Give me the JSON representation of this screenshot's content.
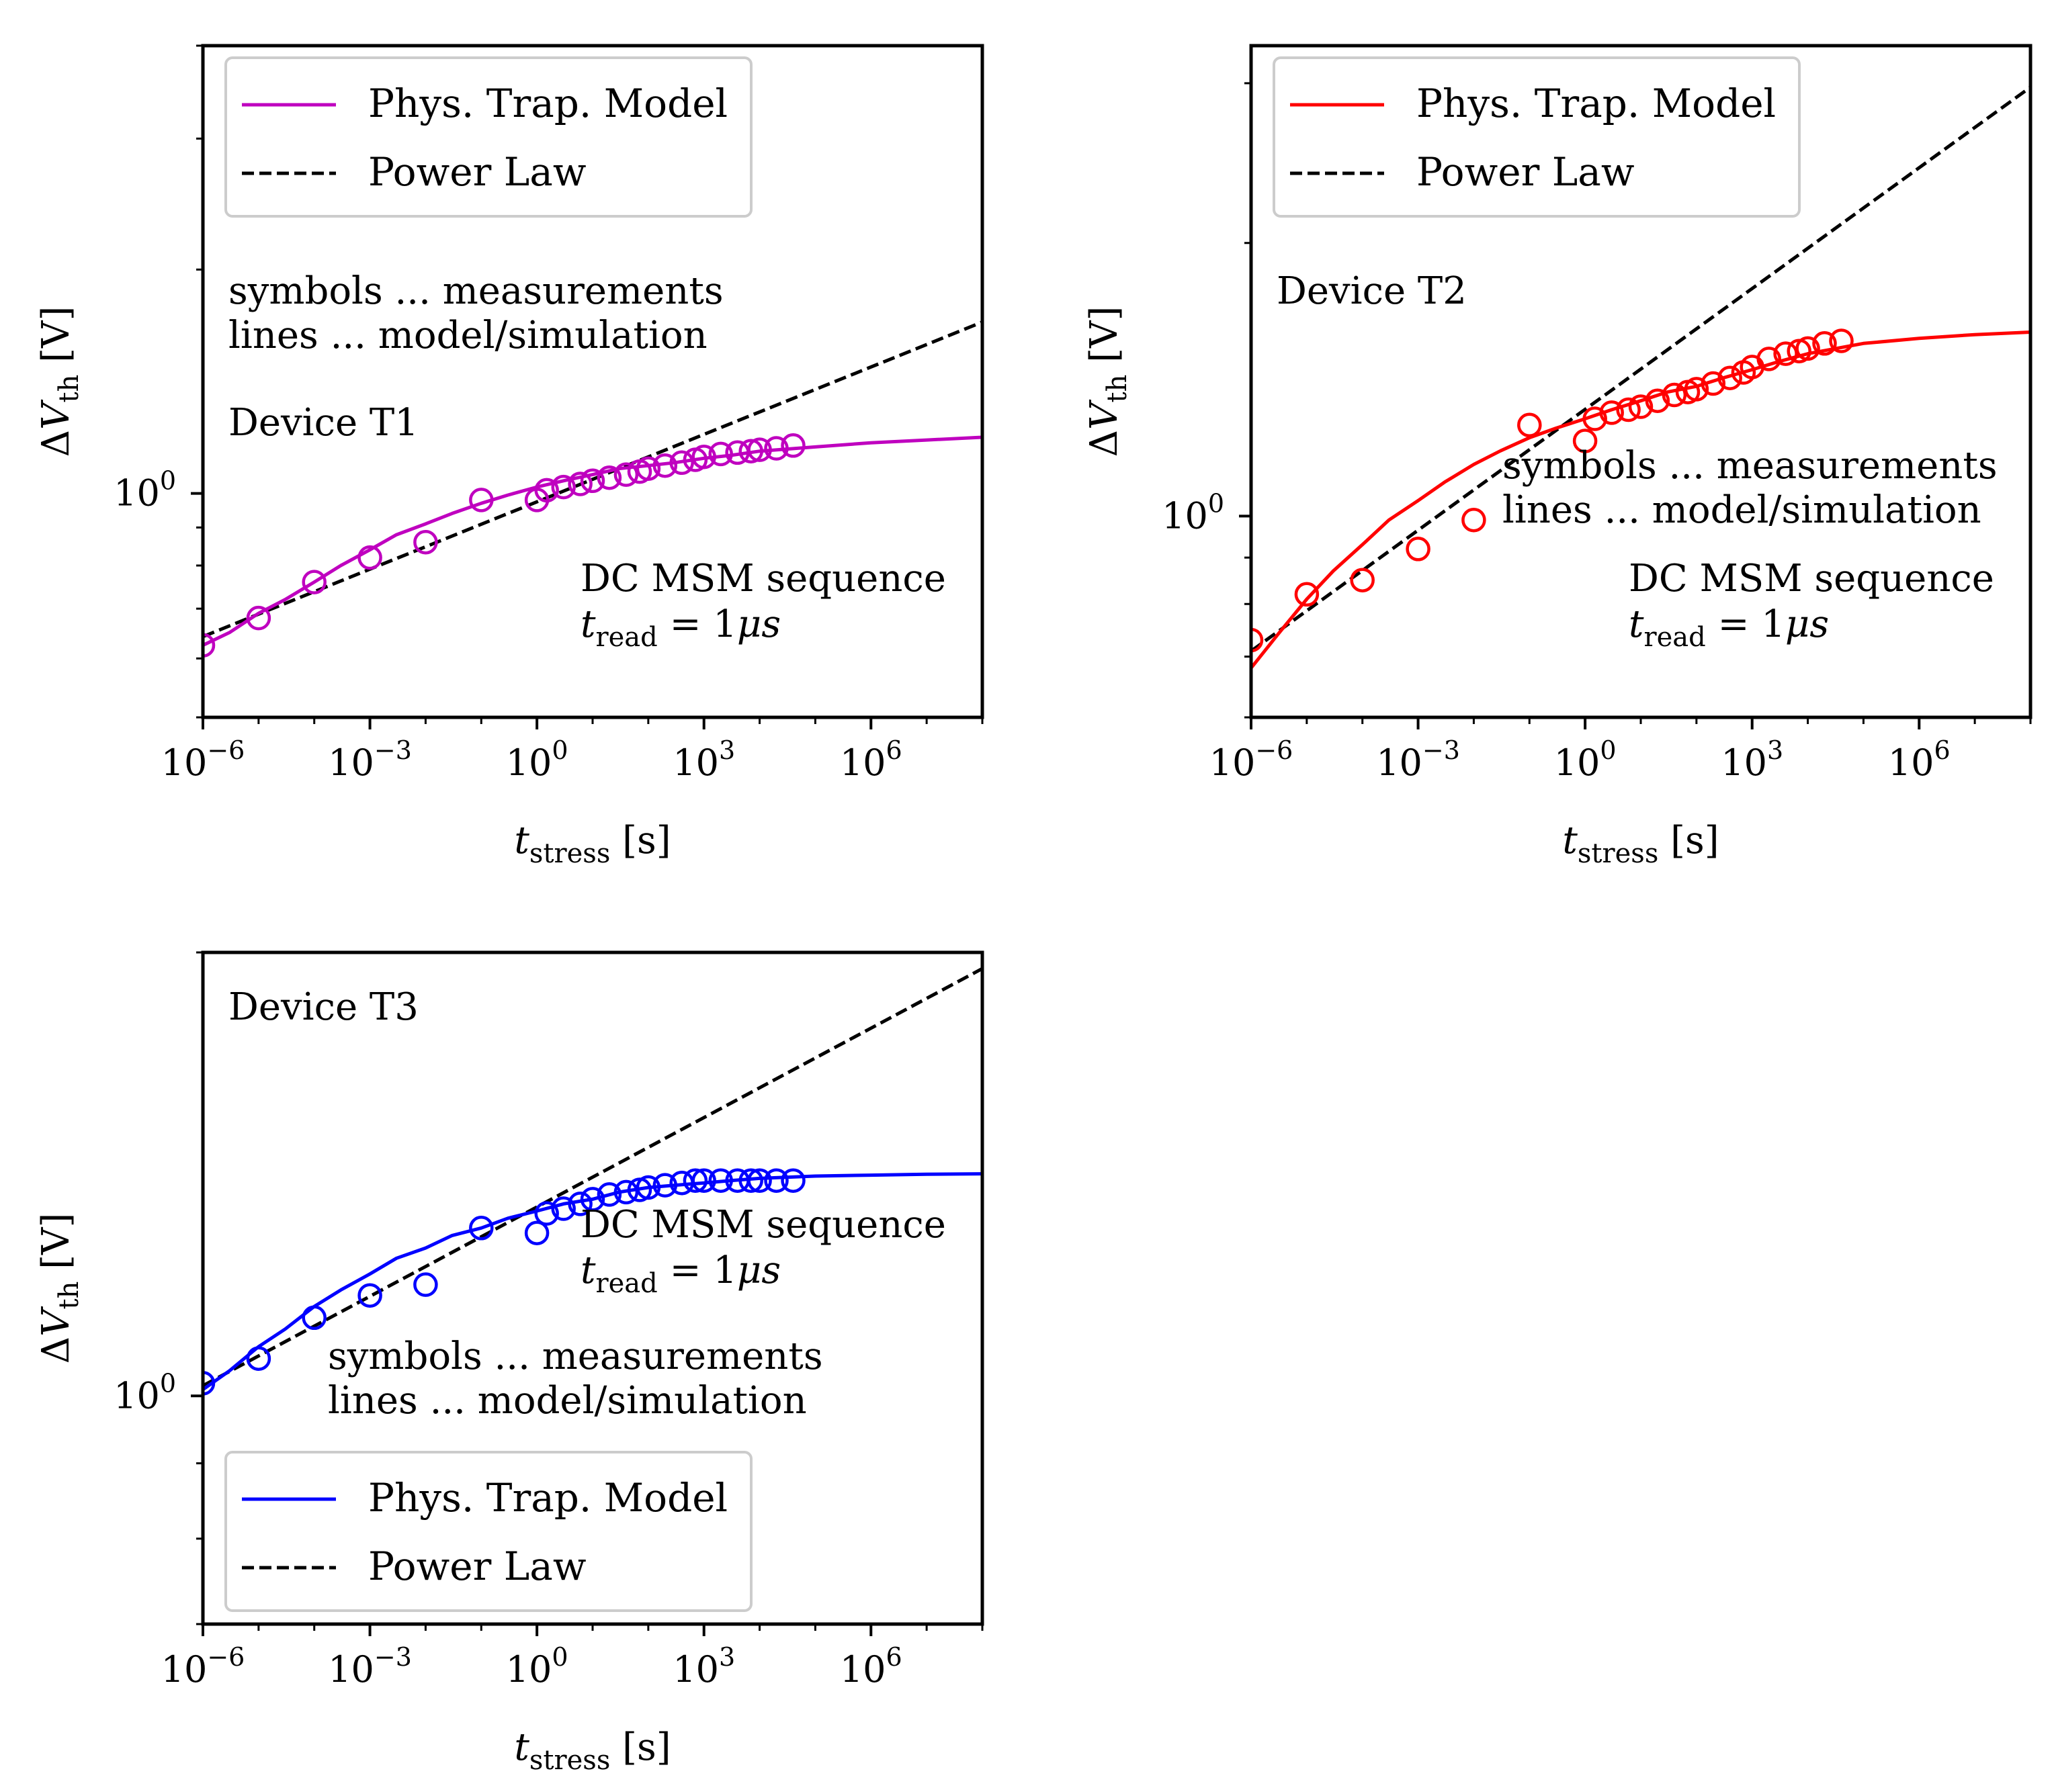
{
  "figure": {
    "style": "matplotlib log-log panels"
  },
  "common": {
    "xlabel": "t",
    "xlabel_sub": "stress",
    "xlabel_unit": " [s]",
    "ylabel_delta": "Δ",
    "ylabel_var": "V",
    "ylabel_sub": "th",
    "ylabel_unit": " [V]",
    "xticks": [
      {
        "value": 1e-06,
        "base": "10",
        "exp": "−6"
      },
      {
        "value": 0.001,
        "base": "10",
        "exp": "−3"
      },
      {
        "value": 1,
        "base": "10",
        "exp": "0"
      },
      {
        "value": 1000.0,
        "base": "10",
        "exp": "3"
      },
      {
        "value": 1000000.0,
        "base": "10",
        "exp": "6"
      }
    ],
    "ytick_major": {
      "value": 1,
      "base": "10",
      "exp": "0"
    },
    "legend_model": "Phys. Trap. Model",
    "legend_power": "Power Law",
    "note_symbols": "symbols ... measurements",
    "note_lines": "lines ... model/simulation",
    "seq_label": "DC MSM sequence",
    "tread_t": "t",
    "tread_sub": "read",
    "tread_eq": " = 1",
    "tread_mu": "μs"
  },
  "chart_data": [
    {
      "type": "line",
      "title": "",
      "device_label": "Device T1",
      "color": "#bf00bf",
      "xscale": "log",
      "yscale": "log",
      "xlim": [
        1e-06,
        100000000.0
      ],
      "ylim": [
        0.5,
        4.0
      ],
      "legend_placement": "top-left",
      "measurements": {
        "x": [
          1e-06,
          1e-05,
          0.0001,
          0.001,
          0.01,
          0.1,
          1,
          1.5,
          3,
          6,
          10,
          20,
          40,
          70,
          100,
          200,
          400,
          700,
          1000,
          2000,
          4000,
          7000,
          10000,
          20000,
          40000
        ],
        "y": [
          0.625,
          0.68,
          0.76,
          0.82,
          0.86,
          0.98,
          0.98,
          1.01,
          1.02,
          1.03,
          1.04,
          1.05,
          1.06,
          1.07,
          1.08,
          1.09,
          1.1,
          1.11,
          1.12,
          1.13,
          1.135,
          1.14,
          1.145,
          1.15,
          1.16
        ]
      },
      "model": {
        "x": [
          1e-06,
          3e-06,
          1e-05,
          3e-05,
          0.0001,
          0.0003,
          0.001,
          0.003,
          0.01,
          0.03,
          0.1,
          0.3,
          1,
          3,
          10,
          30,
          100,
          300,
          1000,
          3000,
          10000,
          100000.0,
          1000000.0,
          10000000.0,
          100000000.0
        ],
        "y": [
          0.625,
          0.65,
          0.69,
          0.72,
          0.76,
          0.8,
          0.84,
          0.88,
          0.91,
          0.94,
          0.97,
          0.995,
          1.02,
          1.04,
          1.06,
          1.08,
          1.09,
          1.1,
          1.115,
          1.125,
          1.14,
          1.155,
          1.17,
          1.18,
          1.19
        ]
      },
      "power_law": {
        "x": [
          1e-06,
          100000000.0
        ],
        "y": [
          0.642,
          1.7
        ]
      }
    },
    {
      "type": "line",
      "title": "",
      "device_label": "Device T2",
      "color": "#ff0000",
      "xscale": "log",
      "yscale": "log",
      "xlim": [
        1e-06,
        100000000.0
      ],
      "ylim": [
        0.6,
        3.3
      ],
      "legend_placement": "top-left",
      "measurements": {
        "x": [
          1e-06,
          1e-05,
          0.0001,
          0.001,
          0.01,
          0.1,
          1,
          1.5,
          3,
          6,
          10,
          20,
          40,
          70,
          100,
          200,
          400,
          700,
          1000,
          2000,
          4000,
          7000,
          10000,
          20000,
          40000
        ],
        "y": [
          0.73,
          0.82,
          0.85,
          0.92,
          0.99,
          1.26,
          1.21,
          1.28,
          1.3,
          1.31,
          1.32,
          1.34,
          1.36,
          1.37,
          1.38,
          1.4,
          1.42,
          1.44,
          1.46,
          1.49,
          1.51,
          1.52,
          1.53,
          1.55,
          1.56
        ]
      },
      "model": {
        "x": [
          1e-06,
          3e-06,
          1e-05,
          3e-05,
          0.0001,
          0.0003,
          0.001,
          0.003,
          0.01,
          0.03,
          0.1,
          0.3,
          1,
          3,
          10,
          30,
          100,
          300,
          1000,
          3000,
          10000,
          100000.0,
          1000000.0,
          10000000.0,
          100000000.0
        ],
        "y": [
          0.68,
          0.74,
          0.81,
          0.87,
          0.93,
          0.99,
          1.04,
          1.09,
          1.14,
          1.18,
          1.22,
          1.25,
          1.28,
          1.31,
          1.34,
          1.37,
          1.39,
          1.42,
          1.45,
          1.48,
          1.51,
          1.55,
          1.57,
          1.585,
          1.595
        ]
      },
      "power_law": {
        "x": [
          1e-06,
          100000000.0
        ],
        "y": [
          0.71,
          2.97
        ]
      }
    },
    {
      "type": "line",
      "title": "",
      "device_label": "Device T3",
      "color": "#0000ff",
      "xscale": "log",
      "yscale": "log",
      "xlim": [
        1e-06,
        100000000.0
      ],
      "ylim": [
        0.7,
        2.0
      ],
      "legend_placement": "bottom-left",
      "measurements": {
        "x": [
          1e-06,
          1e-05,
          0.0001,
          0.001,
          0.01,
          0.1,
          1,
          1.5,
          3,
          6,
          10,
          20,
          40,
          70,
          100,
          200,
          400,
          700,
          1000,
          2000,
          4000,
          7000,
          10000,
          20000,
          40000
        ],
        "y": [
          1.02,
          1.06,
          1.13,
          1.17,
          1.19,
          1.3,
          1.29,
          1.33,
          1.34,
          1.35,
          1.36,
          1.37,
          1.375,
          1.38,
          1.385,
          1.39,
          1.395,
          1.4,
          1.4,
          1.4,
          1.4,
          1.4,
          1.4,
          1.4,
          1.4
        ]
      },
      "model": {
        "x": [
          1e-06,
          3e-06,
          1e-05,
          3e-05,
          0.0001,
          0.0003,
          0.001,
          0.003,
          0.01,
          0.03,
          0.1,
          0.3,
          1,
          3,
          10,
          30,
          100,
          300,
          1000,
          3000,
          10000,
          100000.0,
          1000000.0,
          10000000.0,
          100000000.0
        ],
        "y": [
          1.01,
          1.04,
          1.08,
          1.11,
          1.15,
          1.18,
          1.21,
          1.24,
          1.26,
          1.285,
          1.3,
          1.32,
          1.335,
          1.35,
          1.36,
          1.375,
          1.385,
          1.39,
          1.395,
          1.4,
          1.405,
          1.41,
          1.412,
          1.414,
          1.415
        ]
      },
      "power_law": {
        "x": [
          1e-06,
          100000000.0
        ],
        "y": [
          1.016,
          1.95
        ]
      }
    }
  ]
}
